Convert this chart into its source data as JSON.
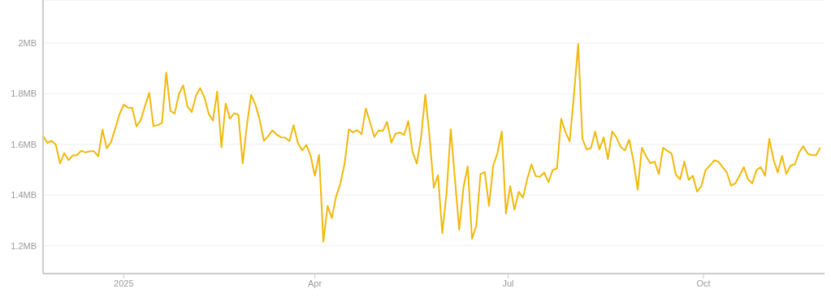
{
  "chart_data": {
    "type": "line",
    "x": [
      "2024-11-24",
      "2024-11-26",
      "2024-11-28",
      "2024-11-30",
      "2024-12-02",
      "2024-12-04",
      "2024-12-06",
      "2024-12-08",
      "2024-12-10",
      "2024-12-12",
      "2024-12-14",
      "2024-12-16",
      "2024-12-18",
      "2024-12-20",
      "2024-12-22",
      "2024-12-24",
      "2024-12-26",
      "2024-12-28",
      "2024-12-30",
      "2025-01-01",
      "2025-01-03",
      "2025-01-05",
      "2025-01-07",
      "2025-01-09",
      "2025-01-11",
      "2025-01-13",
      "2025-01-15",
      "2025-01-17",
      "2025-01-19",
      "2025-01-21",
      "2025-01-23",
      "2025-01-25",
      "2025-01-27",
      "2025-01-29",
      "2025-01-31",
      "2025-02-02",
      "2025-02-04",
      "2025-02-06",
      "2025-02-08",
      "2025-02-10",
      "2025-02-12",
      "2025-02-14",
      "2025-02-16",
      "2025-02-18",
      "2025-02-20",
      "2025-02-22",
      "2025-02-24",
      "2025-02-26",
      "2025-02-28",
      "2025-03-02",
      "2025-03-04",
      "2025-03-06",
      "2025-03-08",
      "2025-03-10",
      "2025-03-12",
      "2025-03-14",
      "2025-03-16",
      "2025-03-18",
      "2025-03-20",
      "2025-03-22",
      "2025-03-24",
      "2025-03-26",
      "2025-03-28",
      "2025-03-30",
      "2025-04-01",
      "2025-04-03",
      "2025-04-05",
      "2025-04-07",
      "2025-04-09",
      "2025-04-11",
      "2025-04-13",
      "2025-04-15",
      "2025-04-17",
      "2025-04-19",
      "2025-04-21",
      "2025-04-23",
      "2025-04-25",
      "2025-04-27",
      "2025-04-29",
      "2025-05-01",
      "2025-05-03",
      "2025-05-05",
      "2025-05-07",
      "2025-05-09",
      "2025-05-11",
      "2025-05-13",
      "2025-05-15",
      "2025-05-17",
      "2025-05-19",
      "2025-05-21",
      "2025-05-23",
      "2025-05-25",
      "2025-05-27",
      "2025-05-29",
      "2025-05-31",
      "2025-06-02",
      "2025-06-04",
      "2025-06-06",
      "2025-06-08",
      "2025-06-10",
      "2025-06-12",
      "2025-06-14",
      "2025-06-16",
      "2025-06-18",
      "2025-06-20",
      "2025-06-22",
      "2025-06-24",
      "2025-06-26",
      "2025-06-28",
      "2025-06-30",
      "2025-07-02",
      "2025-07-04",
      "2025-07-06",
      "2025-07-08",
      "2025-07-10",
      "2025-07-12",
      "2025-07-14",
      "2025-07-16",
      "2025-07-18",
      "2025-07-20",
      "2025-07-22",
      "2025-07-24",
      "2025-07-26",
      "2025-07-28",
      "2025-07-30",
      "2025-08-01",
      "2025-08-03",
      "2025-08-05",
      "2025-08-07",
      "2025-08-09",
      "2025-08-11",
      "2025-08-13",
      "2025-08-15",
      "2025-08-17",
      "2025-08-19",
      "2025-08-21",
      "2025-08-23",
      "2025-08-25",
      "2025-08-27",
      "2025-08-29",
      "2025-08-31",
      "2025-09-02",
      "2025-09-04",
      "2025-09-06",
      "2025-09-08",
      "2025-09-10",
      "2025-09-12",
      "2025-09-14",
      "2025-09-16",
      "2025-09-18",
      "2025-09-20",
      "2025-09-22",
      "2025-09-24",
      "2025-09-26",
      "2025-09-28",
      "2025-09-30",
      "2025-10-02",
      "2025-10-04",
      "2025-10-06",
      "2025-10-08",
      "2025-10-10",
      "2025-10-12",
      "2025-10-14",
      "2025-10-16",
      "2025-10-18",
      "2025-10-20",
      "2025-10-22",
      "2025-10-24",
      "2025-10-26",
      "2025-10-28",
      "2025-10-30",
      "2025-11-01",
      "2025-11-03",
      "2025-11-05",
      "2025-11-07",
      "2025-11-09",
      "2025-11-11",
      "2025-11-13",
      "2025-11-15",
      "2025-11-17",
      "2025-11-19",
      "2025-11-21",
      "2025-11-23",
      "2025-11-25"
    ],
    "series": [
      {
        "color": "#f0b90b",
        "values": [
          1.635,
          1.606,
          1.614,
          1.599,
          1.525,
          1.566,
          1.538,
          1.556,
          1.558,
          1.575,
          1.568,
          1.573,
          1.573,
          1.553,
          1.658,
          1.584,
          1.609,
          1.662,
          1.719,
          1.757,
          1.745,
          1.744,
          1.671,
          1.696,
          1.751,
          1.804,
          1.672,
          1.676,
          1.684,
          1.884,
          1.732,
          1.722,
          1.799,
          1.833,
          1.75,
          1.728,
          1.792,
          1.822,
          1.786,
          1.721,
          1.694,
          1.809,
          1.589,
          1.761,
          1.701,
          1.723,
          1.717,
          1.525,
          1.676,
          1.795,
          1.757,
          1.698,
          1.614,
          1.633,
          1.655,
          1.639,
          1.628,
          1.627,
          1.613,
          1.676,
          1.606,
          1.576,
          1.598,
          1.555,
          1.476,
          1.559,
          1.216,
          1.357,
          1.309,
          1.395,
          1.444,
          1.524,
          1.659,
          1.648,
          1.656,
          1.64,
          1.742,
          1.686,
          1.63,
          1.655,
          1.653,
          1.689,
          1.607,
          1.642,
          1.647,
          1.637,
          1.692,
          1.571,
          1.524,
          1.627,
          1.796,
          1.631,
          1.429,
          1.478,
          1.25,
          1.407,
          1.66,
          1.459,
          1.263,
          1.432,
          1.513,
          1.227,
          1.277,
          1.482,
          1.491,
          1.358,
          1.517,
          1.566,
          1.651,
          1.327,
          1.435,
          1.342,
          1.413,
          1.39,
          1.463,
          1.521,
          1.475,
          1.472,
          1.489,
          1.451,
          1.499,
          1.505,
          1.701,
          1.649,
          1.612,
          1.794,
          1.997,
          1.622,
          1.58,
          1.585,
          1.651,
          1.58,
          1.628,
          1.542,
          1.651,
          1.628,
          1.59,
          1.576,
          1.619,
          1.537,
          1.421,
          1.587,
          1.553,
          1.526,
          1.532,
          1.483,
          1.587,
          1.574,
          1.564,
          1.48,
          1.462,
          1.532,
          1.46,
          1.476,
          1.414,
          1.435,
          1.499,
          1.516,
          1.537,
          1.532,
          1.51,
          1.489,
          1.437,
          1.446,
          1.478,
          1.51,
          1.462,
          1.446,
          1.499,
          1.51,
          1.476,
          1.622,
          1.54,
          1.489,
          1.555,
          1.483,
          1.516,
          1.521,
          1.567,
          1.593,
          1.564,
          1.558,
          1.557,
          1.587
        ]
      }
    ],
    "xlim": [
      "2024-11-24",
      "2025-11-27"
    ],
    "xticks": [
      {
        "value": "2025-01-01",
        "label": "2025"
      },
      {
        "value": "2025-04-01",
        "label": "Apr"
      },
      {
        "value": "2025-07-01",
        "label": "Jul"
      },
      {
        "value": "2025-10-01",
        "label": "Oct"
      }
    ],
    "ylim": [
      1.09,
      2.17
    ],
    "yticks": [
      {
        "value": 1.2,
        "label": "1.2MB"
      },
      {
        "value": 1.4,
        "label": "1.4MB"
      },
      {
        "value": 1.6,
        "label": "1.6MB"
      },
      {
        "value": 1.8,
        "label": "1.8MB"
      },
      {
        "value": 2,
        "label": "2MB"
      }
    ],
    "grid": "y",
    "marker": "none",
    "line_style": "solid",
    "legend": false
  }
}
